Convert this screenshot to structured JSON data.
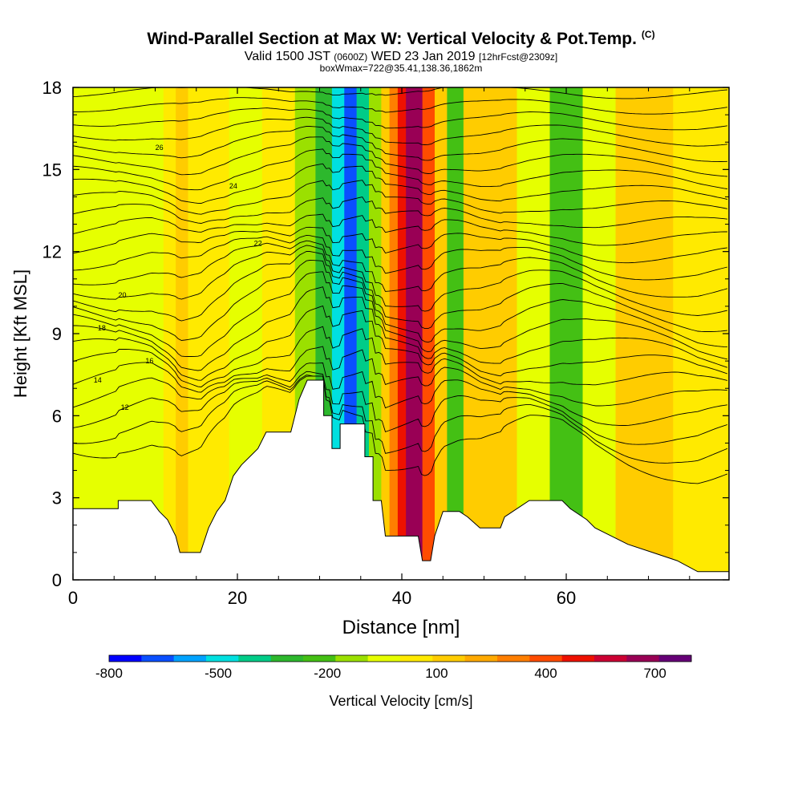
{
  "title": {
    "main": "Wind-Parallel Section at Max W: Vertical Velocity & Pot.Temp.",
    "copyright": "(C)",
    "valid_prefix": "Valid 1500 JST",
    "valid_utc": "(0600Z)",
    "valid_date": "WED 23 Jan 2019",
    "forecast": "[12hrFcst@2309z]",
    "box_info": "boxWmax=722@35.41,138.36,1862m"
  },
  "chart_data": {
    "type": "heatmap",
    "xlabel": "Distance [nm]",
    "ylabel": "Height [Kft MSL]",
    "xlim": [
      0,
      79.8
    ],
    "ylim": [
      0,
      18
    ],
    "xticks": [
      "0",
      "20",
      "40",
      "60"
    ],
    "yticks": [
      "0",
      "3",
      "6",
      "9",
      "12",
      "15",
      "18"
    ],
    "colorbar": {
      "label": "Vertical Velocity [cm/s]",
      "ticks": [
        "-800",
        "-500",
        "-200",
        "100",
        "400",
        "700"
      ],
      "colors": [
        "#0000ff",
        "#0a4fff",
        "#00a3ff",
        "#00e0e0",
        "#00cc88",
        "#2db82d",
        "#44c014",
        "#9be000",
        "#e6ff00",
        "#ffea00",
        "#ffcc00",
        "#ffaa00",
        "#ff7f00",
        "#ff4c00",
        "#ee1100",
        "#cc0033",
        "#990055",
        "#660077"
      ]
    },
    "wind_max": {
      "value": 722,
      "units": "cm/s",
      "lat": 35.41,
      "lon": 138.36,
      "height_m": 1862
    },
    "terrain": [
      {
        "x": 0,
        "h": 2.6
      },
      {
        "x": 5.5,
        "h": 2.6
      },
      {
        "x": 5.5,
        "h": 2.9
      },
      {
        "x": 9.5,
        "h": 2.9
      },
      {
        "x": 10.5,
        "h": 2.5
      },
      {
        "x": 11.5,
        "h": 2.2
      },
      {
        "x": 12.5,
        "h": 1.6
      },
      {
        "x": 13,
        "h": 1.0
      },
      {
        "x": 15.5,
        "h": 1.0
      },
      {
        "x": 16.5,
        "h": 1.9
      },
      {
        "x": 17.5,
        "h": 2.5
      },
      {
        "x": 18.5,
        "h": 2.9
      },
      {
        "x": 19.5,
        "h": 3.8
      },
      {
        "x": 20.5,
        "h": 4.2
      },
      {
        "x": 21.5,
        "h": 4.5
      },
      {
        "x": 22.5,
        "h": 4.8
      },
      {
        "x": 23.5,
        "h": 5.4
      },
      {
        "x": 26.5,
        "h": 5.4
      },
      {
        "x": 27.5,
        "h": 6.6
      },
      {
        "x": 28.5,
        "h": 7.3
      },
      {
        "x": 30.5,
        "h": 7.3
      },
      {
        "x": 30.5,
        "h": 6.0
      },
      {
        "x": 31.5,
        "h": 6.0
      },
      {
        "x": 31.5,
        "h": 4.8
      },
      {
        "x": 32.5,
        "h": 4.8
      },
      {
        "x": 32.5,
        "h": 5.7
      },
      {
        "x": 35.5,
        "h": 5.7
      },
      {
        "x": 35.5,
        "h": 4.5
      },
      {
        "x": 36.5,
        "h": 4.5
      },
      {
        "x": 36.5,
        "h": 2.9
      },
      {
        "x": 37.5,
        "h": 2.9
      },
      {
        "x": 38,
        "h": 1.6
      },
      {
        "x": 42,
        "h": 1.6
      },
      {
        "x": 42.5,
        "h": 0.7
      },
      {
        "x": 43.5,
        "h": 0.7
      },
      {
        "x": 44,
        "h": 1.6
      },
      {
        "x": 45,
        "h": 2.5
      },
      {
        "x": 47,
        "h": 2.5
      },
      {
        "x": 48,
        "h": 2.3
      },
      {
        "x": 49.5,
        "h": 1.9
      },
      {
        "x": 52,
        "h": 1.9
      },
      {
        "x": 52.5,
        "h": 2.3
      },
      {
        "x": 54,
        "h": 2.6
      },
      {
        "x": 55.5,
        "h": 2.9
      },
      {
        "x": 59.5,
        "h": 2.9
      },
      {
        "x": 60.5,
        "h": 2.6
      },
      {
        "x": 62.5,
        "h": 2.2
      },
      {
        "x": 63.5,
        "h": 1.9
      },
      {
        "x": 65.5,
        "h": 1.6
      },
      {
        "x": 67.5,
        "h": 1.3
      },
      {
        "x": 70.5,
        "h": 1.0
      },
      {
        "x": 73.5,
        "h": 0.7
      },
      {
        "x": 76,
        "h": 0.3
      },
      {
        "x": 79.8,
        "h": 0.3
      }
    ],
    "velocity_zones": [
      {
        "x0": 0,
        "x1": 11,
        "v": -50
      },
      {
        "x0": 11,
        "x1": 12.5,
        "v": 40
      },
      {
        "x0": 12.5,
        "x1": 14,
        "v": 150
      },
      {
        "x0": 14,
        "x1": 16,
        "v": 80
      },
      {
        "x0": 16,
        "x1": 19,
        "v": 0
      },
      {
        "x0": 19,
        "x1": 23,
        "v": -60
      },
      {
        "x0": 23,
        "x1": 27,
        "v": 20
      },
      {
        "x0": 27,
        "x1": 29.5,
        "v": -120
      },
      {
        "x0": 29.5,
        "x1": 31.5,
        "v": -300
      },
      {
        "x0": 31.5,
        "x1": 33,
        "v": -500
      },
      {
        "x0": 33,
        "x1": 34.5,
        "v": -650
      },
      {
        "x0": 34.5,
        "x1": 36,
        "v": -420
      },
      {
        "x0": 36,
        "x1": 37.5,
        "v": -150
      },
      {
        "x0": 37.5,
        "x1": 38.5,
        "v": 100
      },
      {
        "x0": 38.5,
        "x1": 39.5,
        "v": 300
      },
      {
        "x0": 39.5,
        "x1": 40.5,
        "v": 500
      },
      {
        "x0": 40.5,
        "x1": 42.5,
        "v": 700
      },
      {
        "x0": 42.5,
        "x1": 44,
        "v": 420
      },
      {
        "x0": 44,
        "x1": 45.5,
        "v": 120
      },
      {
        "x0": 45.5,
        "x1": 47.5,
        "v": -200
      },
      {
        "x0": 47.5,
        "x1": 50,
        "v": 100
      },
      {
        "x0": 50,
        "x1": 54,
        "v": 150
      },
      {
        "x0": 54,
        "x1": 58,
        "v": -80
      },
      {
        "x0": 58,
        "x1": 62,
        "v": -250
      },
      {
        "x0": 62,
        "x1": 66,
        "v": -30
      },
      {
        "x0": 66,
        "x1": 73,
        "v": 120
      },
      {
        "x0": 73,
        "x1": 79.8,
        "v": 40
      }
    ],
    "theta_contours": [
      {
        "label": "12",
        "base": 6.3,
        "label_x": 6.3
      },
      {
        "label": "14",
        "base": 7.3,
        "label_x": 3.0
      },
      {
        "label": "16",
        "base": 8.0,
        "label_x": 9.3
      },
      {
        "label": "18",
        "base": 9.2,
        "label_x": 3.5
      },
      {
        "label": "20",
        "base": 10.4,
        "label_x": 6.0
      },
      {
        "label": "22",
        "base": 12.3,
        "label_x": 22.5
      },
      {
        "label": "24",
        "base": 14.4,
        "label_x": 19.5
      },
      {
        "label": "26",
        "base": 15.8,
        "label_x": 10.5
      }
    ]
  }
}
